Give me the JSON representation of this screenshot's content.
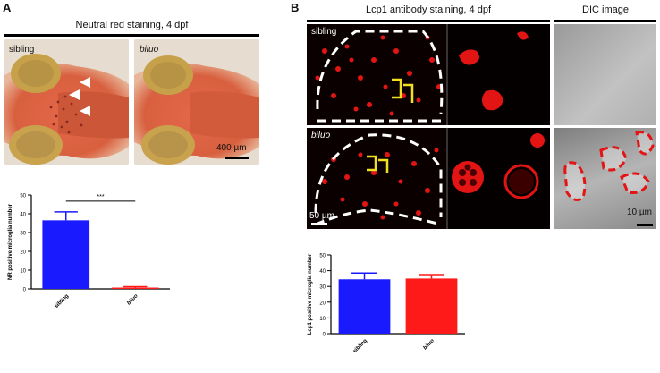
{
  "panel_a": {
    "letter": "A",
    "title": "Neutral red staining, 4 dpf",
    "photo_labels": [
      "sibling",
      "biluo"
    ],
    "scale_bar": "400 µm"
  },
  "panel_b": {
    "letter": "B",
    "title_left": "Lcp1 antibody staining, 4 dpf",
    "title_right": "DIC image",
    "row_labels": [
      "sibling",
      "biluo"
    ],
    "scale_bar_left": "50 µm",
    "scale_bar_right": "10 µm"
  },
  "chart_data": [
    {
      "type": "bar",
      "categories": [
        "sibling",
        "biluo"
      ],
      "values": [
        36.5,
        0.7
      ],
      "errors": [
        4.5,
        0.5
      ],
      "colors": [
        "#1a1aff",
        "#ff1a1a"
      ],
      "ylabel": "NR positive microglia number",
      "ylim": [
        0,
        50
      ],
      "yticks": [
        0,
        10,
        20,
        30,
        40,
        50
      ],
      "significance": "***"
    },
    {
      "type": "bar",
      "categories": [
        "sibling",
        "biluo"
      ],
      "values": [
        34.5,
        35.0
      ],
      "errors": [
        4.0,
        2.5
      ],
      "colors": [
        "#1a1aff",
        "#ff1a1a"
      ],
      "ylabel": "Lcp1 positive microglia number",
      "ylim": [
        0,
        50
      ],
      "yticks": [
        0,
        10,
        20,
        30,
        40,
        50
      ]
    }
  ]
}
